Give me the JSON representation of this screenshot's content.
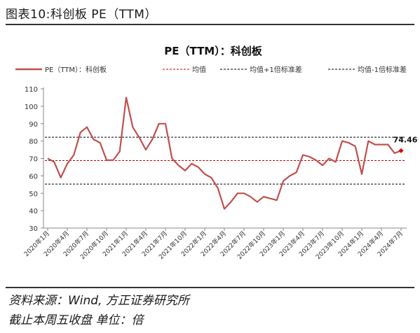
{
  "header": {
    "figure_title": "图表10:科创板 PE（TTM）"
  },
  "footer": {
    "source": "资料来源：Wind, 方正证券研究所",
    "note": "截止本周五收盘 单位：倍"
  },
  "chart_data": {
    "type": "line",
    "title": "PE（TTM）：科创板",
    "xlabel": "",
    "ylabel": "",
    "ylim": [
      30,
      110
    ],
    "yticks": [
      30,
      40,
      50,
      60,
      70,
      80,
      90,
      100,
      110
    ],
    "grid": false,
    "legend_placement": "top",
    "x_tick_labels": [
      "2020年1月",
      "2020年4月",
      "2020年7月",
      "2020年10月",
      "2021年1月",
      "2021年4月",
      "2021年7月",
      "2021年10月",
      "2022年1月",
      "2022年4月",
      "2022年7月",
      "2022年10月",
      "2023年1月",
      "2023年4月",
      "2023年7月",
      "2023年10月",
      "2024年1月",
      "2024年4月",
      "2024年7月"
    ],
    "series": [
      {
        "name": "PE（TTM）：科创板",
        "color": "#c0504d",
        "style": "solid",
        "x": [
          "2020-01",
          "2020-02",
          "2020-03",
          "2020-04",
          "2020-05",
          "2020-06",
          "2020-07",
          "2020-08",
          "2020-09",
          "2020-10",
          "2020-11",
          "2020-12",
          "2021-01",
          "2021-02",
          "2021-03",
          "2021-04",
          "2021-05",
          "2021-06",
          "2021-07",
          "2021-08",
          "2021-09",
          "2021-10",
          "2021-11",
          "2021-12",
          "2022-01",
          "2022-02",
          "2022-03",
          "2022-04",
          "2022-05",
          "2022-06",
          "2022-07",
          "2022-08",
          "2022-09",
          "2022-10",
          "2022-11",
          "2022-12",
          "2023-01",
          "2023-02",
          "2023-03",
          "2023-04",
          "2023-05",
          "2023-06",
          "2023-07",
          "2023-08",
          "2023-09",
          "2023-10",
          "2023-11",
          "2023-12",
          "2024-01",
          "2024-02",
          "2024-03",
          "2024-04",
          "2024-05",
          "2024-06",
          "2024-07"
        ],
        "values": [
          70,
          68,
          59,
          67,
          72,
          85,
          88,
          81,
          79,
          69,
          69,
          74,
          105,
          88,
          82,
          75,
          81,
          90,
          90,
          70,
          66,
          63,
          67,
          65,
          61,
          59,
          53,
          41,
          45,
          50,
          50,
          48,
          45,
          48,
          47,
          46,
          57,
          60,
          62,
          72,
          71,
          69,
          66,
          70,
          68,
          80,
          79,
          77,
          61,
          80,
          78,
          78,
          78,
          73,
          74.46
        ]
      },
      {
        "name": "均值",
        "color": "#c00000",
        "style": "dashed",
        "value": 68.8
      },
      {
        "name": "均值+1倍标准差",
        "color": "#000000",
        "style": "dashed",
        "value": 82.2
      },
      {
        "name": "均值-1倍标准差",
        "color": "#000000",
        "style": "dashed",
        "value": 55.3
      }
    ],
    "annotations": [
      {
        "text": "74.46",
        "x": "2024-07",
        "y": 74.46
      }
    ]
  }
}
